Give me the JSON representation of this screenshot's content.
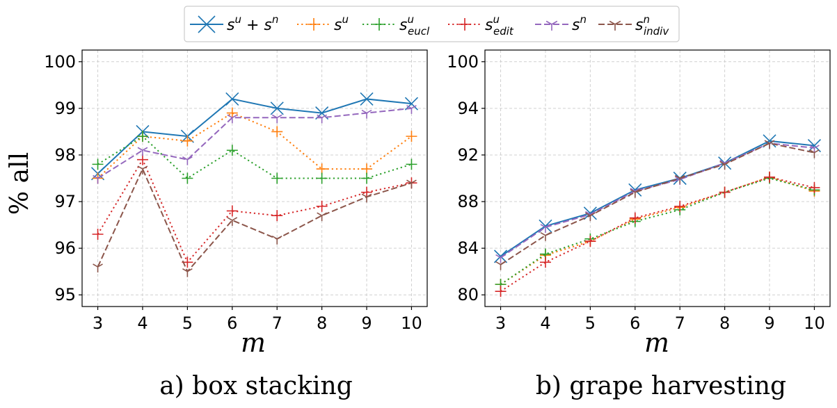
{
  "legend": {
    "items": [
      {
        "key": "su_sn",
        "label": "s",
        "sup": "u",
        "sub": "",
        "rest": " + s",
        "rest_sup": "n",
        "color": "#1f77b4",
        "dash": "solid",
        "marker": "x"
      },
      {
        "key": "su",
        "label": "s",
        "sup": "u",
        "sub": "",
        "rest": "",
        "rest_sup": "",
        "color": "#ff7f0e",
        "dash": "dotted",
        "marker": "plus"
      },
      {
        "key": "su_eucl",
        "label": "s",
        "sup": "u",
        "sub": "eucl",
        "rest": "",
        "rest_sup": "",
        "color": "#2ca02c",
        "dash": "dotted",
        "marker": "plus"
      },
      {
        "key": "su_edit",
        "label": "s",
        "sup": "u",
        "sub": "edit",
        "rest": "",
        "rest_sup": "",
        "color": "#d62728",
        "dash": "dotted",
        "marker": "plus"
      },
      {
        "key": "sn",
        "label": "s",
        "sup": "n",
        "sub": "",
        "rest": "",
        "rest_sup": "",
        "color": "#9467bd",
        "dash": "dashed",
        "marker": "tri_down"
      },
      {
        "key": "sn_indiv",
        "label": "s",
        "sup": "n",
        "sub": "indiv",
        "rest": "",
        "rest_sup": "",
        "color": "#8c564b",
        "dash": "dashed",
        "marker": "tri_down"
      }
    ]
  },
  "chart_data": [
    {
      "type": "line",
      "caption": "a) box stacking",
      "xlabel": "m",
      "ylabel": "% all",
      "x": [
        3,
        4,
        5,
        6,
        7,
        8,
        9,
        10
      ],
      "xlim": [
        2.65,
        10.35
      ],
      "ylim": [
        94.75,
        100.25
      ],
      "yticks": [
        95,
        96,
        97,
        98,
        99,
        100
      ],
      "grid": true,
      "series": [
        {
          "key": "su_sn",
          "values": [
            97.6,
            98.5,
            98.4,
            99.2,
            99.0,
            98.9,
            99.2,
            99.1
          ]
        },
        {
          "key": "su",
          "values": [
            97.5,
            98.4,
            98.3,
            98.9,
            98.5,
            97.7,
            97.7,
            98.4
          ]
        },
        {
          "key": "su_eucl",
          "values": [
            97.8,
            98.4,
            97.5,
            98.1,
            97.5,
            97.5,
            97.5,
            97.8
          ]
        },
        {
          "key": "su_edit",
          "values": [
            96.3,
            97.9,
            95.7,
            96.8,
            96.7,
            96.9,
            97.2,
            97.4
          ]
        },
        {
          "key": "sn",
          "values": [
            97.5,
            98.1,
            97.9,
            98.8,
            98.8,
            98.8,
            98.9,
            99.0
          ]
        },
        {
          "key": "sn_indiv",
          "values": [
            95.6,
            97.7,
            95.5,
            96.6,
            96.2,
            96.7,
            97.1,
            97.4
          ]
        }
      ]
    },
    {
      "type": "line",
      "caption": "b) grape harvesting",
      "xlabel": "m",
      "ylabel": "",
      "x": [
        3,
        4,
        5,
        6,
        7,
        8,
        9,
        10
      ],
      "xlim": [
        2.65,
        10.35
      ],
      "ylim": [
        79.0,
        100.6
      ],
      "yticks": [
        80,
        84,
        88,
        92,
        94,
        100
      ],
      "grid": true,
      "note": "the y-axis is broken between 94 and 100: ticks and gridlines run at a constant spacing of 4 up to 94 and 100 sits one further step above",
      "series": [
        {
          "key": "su_sn",
          "values": [
            83.3,
            85.9,
            87.0,
            89.0,
            90.0,
            91.3,
            92.6,
            92.4
          ]
        },
        {
          "key": "su",
          "values": [
            80.9,
            83.4,
            84.6,
            86.5,
            87.5,
            88.8,
            90.1,
            88.9
          ]
        },
        {
          "key": "su_eucl",
          "values": [
            80.9,
            83.5,
            84.8,
            86.3,
            87.3,
            88.8,
            90.0,
            89.0
          ]
        },
        {
          "key": "su_edit",
          "values": [
            80.3,
            82.8,
            84.6,
            86.6,
            87.6,
            88.8,
            90.1,
            89.2
          ]
        },
        {
          "key": "sn",
          "values": [
            83.2,
            85.8,
            86.9,
            88.9,
            89.9,
            91.3,
            92.5,
            92.3
          ]
        },
        {
          "key": "sn_indiv",
          "values": [
            82.6,
            85.1,
            86.8,
            88.8,
            90.0,
            91.2,
            92.5,
            92.1
          ]
        }
      ]
    }
  ]
}
